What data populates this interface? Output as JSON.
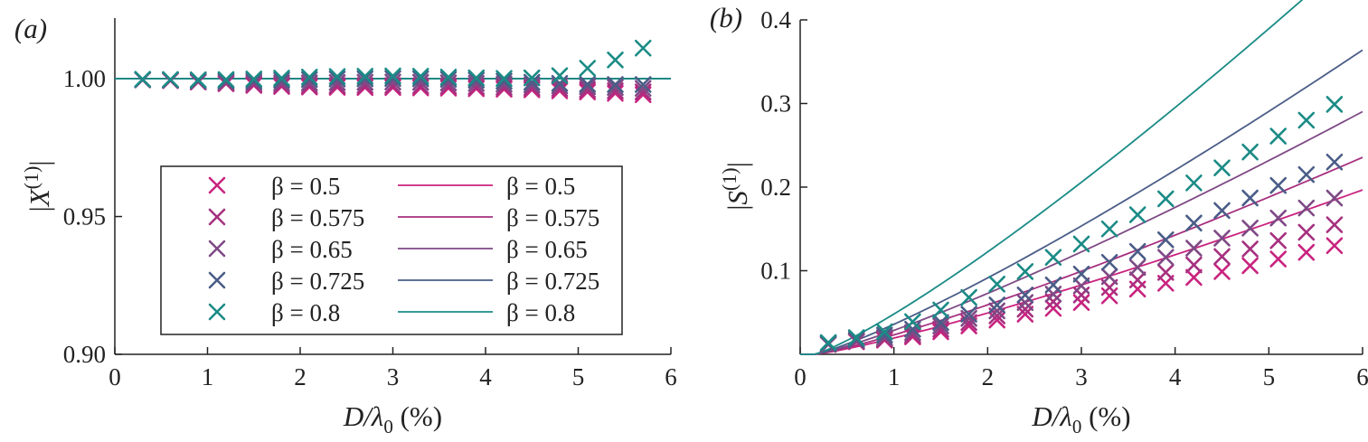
{
  "chart_data": [
    {
      "panel": "(a)",
      "type": "scatter",
      "xlabel": "D/λ0 (%)",
      "ylabel": "|X(1)|",
      "xlim": [
        0,
        6
      ],
      "ylim": [
        0.9,
        1.022
      ],
      "xticks": [
        0,
        1,
        2,
        3,
        4,
        5,
        6
      ],
      "yticks": [
        0.9,
        0.95,
        1.0
      ],
      "ytick_labels": [
        "0.90",
        "0.95",
        "1.00"
      ],
      "legend": {
        "placement": "lower-center",
        "markers": [
          "β = 0.5",
          "β = 0.575",
          "β = 0.65",
          "β = 0.725",
          "β = 0.8"
        ],
        "lines": [
          "β = 0.5",
          "β = 0.575",
          "β = 0.65",
          "β = 0.725",
          "β = 0.8"
        ]
      },
      "x": [
        0.3,
        0.6,
        0.9,
        1.2,
        1.5,
        1.8,
        2.1,
        2.4,
        2.7,
        3.0,
        3.3,
        3.6,
        3.9,
        4.2,
        4.5,
        4.8,
        5.1,
        5.4,
        5.7
      ],
      "series": [
        {
          "name": "β = 0.5",
          "color": "#c9237f",
          "values": [
            0.9996,
            0.9993,
            0.9988,
            0.9982,
            0.9976,
            0.9972,
            0.997,
            0.9969,
            0.9968,
            0.9968,
            0.9967,
            0.9966,
            0.9964,
            0.9962,
            0.996,
            0.9956,
            0.9952,
            0.9947,
            0.9942
          ],
          "line": [
            1.0,
            1.0
          ]
        },
        {
          "name": "β = 0.575",
          "color": "#a6307f",
          "values": [
            0.9996,
            0.9994,
            0.9989,
            0.9984,
            0.998,
            0.9977,
            0.9976,
            0.9975,
            0.9975,
            0.9975,
            0.9974,
            0.9973,
            0.9971,
            0.9969,
            0.9967,
            0.9964,
            0.996,
            0.9956,
            0.9952
          ],
          "line": [
            1.0,
            1.0
          ]
        },
        {
          "name": "β = 0.65",
          "color": "#7e4a85",
          "values": [
            0.9997,
            0.9995,
            0.9991,
            0.9988,
            0.9986,
            0.9985,
            0.9985,
            0.9986,
            0.9987,
            0.9988,
            0.9987,
            0.9985,
            0.9983,
            0.998,
            0.9977,
            0.9974,
            0.9971,
            0.9968,
            0.9965
          ],
          "line": [
            1.0,
            1.0
          ]
        },
        {
          "name": "β = 0.725",
          "color": "#4a5d87",
          "values": [
            0.9997,
            0.9996,
            0.9994,
            0.9993,
            0.9993,
            0.9995,
            0.9997,
            0.9999,
            1.0,
            1.0001,
            1.0,
            0.9998,
            0.9995,
            0.9991,
            0.9987,
            0.9983,
            0.998,
            0.9979,
            0.9979
          ],
          "line": [
            1.0,
            1.0
          ]
        },
        {
          "name": "β = 0.8",
          "color": "#1b8b86",
          "values": [
            0.9998,
            0.9997,
            0.9996,
            0.9997,
            0.9999,
            1.0002,
            1.0006,
            1.0008,
            1.0009,
            1.001,
            1.0009,
            1.0006,
            1.0003,
            1.0001,
            1.0003,
            1.0011,
            1.0038,
            1.0068,
            1.0111
          ],
          "line": [
            1.0,
            1.0
          ]
        }
      ]
    },
    {
      "panel": "(b)",
      "type": "scatter",
      "xlabel": "D/λ0 (%)",
      "ylabel": "|S(1)|",
      "xlim": [
        0,
        6
      ],
      "ylim": [
        0,
        0.4
      ],
      "xticks": [
        0,
        1,
        2,
        3,
        4,
        5,
        6
      ],
      "yticks": [
        0.1,
        0.2,
        0.3,
        0.4
      ],
      "ytick_labels": [
        "0.1",
        "0.2",
        "0.3",
        "0.4"
      ],
      "x": [
        0.3,
        0.6,
        0.9,
        1.2,
        1.5,
        1.8,
        2.1,
        2.4,
        2.7,
        3.0,
        3.3,
        3.6,
        3.9,
        4.2,
        4.5,
        4.8,
        5.1,
        5.4,
        5.7
      ],
      "series": [
        {
          "name": "β = 0.5",
          "color": "#c9237f",
          "values": [
            0.012,
            0.015,
            0.017,
            0.021,
            0.027,
            0.034,
            0.041,
            0.048,
            0.055,
            0.062,
            0.07,
            0.078,
            0.085,
            0.092,
            0.099,
            0.106,
            0.114,
            0.122,
            0.13
          ],
          "line_k": 0.02361
        },
        {
          "name": "β = 0.575",
          "color": "#a6307f",
          "values": [
            0.012,
            0.016,
            0.018,
            0.023,
            0.03,
            0.038,
            0.046,
            0.054,
            0.063,
            0.071,
            0.08,
            0.089,
            0.098,
            0.107,
            0.117,
            0.126,
            0.136,
            0.146,
            0.155
          ],
          "line_k": 0.02828
        },
        {
          "name": "β = 0.65",
          "color": "#7e4a85",
          "values": [
            0.012,
            0.016,
            0.02,
            0.026,
            0.034,
            0.043,
            0.052,
            0.062,
            0.072,
            0.082,
            0.093,
            0.104,
            0.116,
            0.127,
            0.139,
            0.151,
            0.163,
            0.175,
            0.187
          ],
          "line_k": 0.03485
        },
        {
          "name": "β = 0.725",
          "color": "#4a5d87",
          "values": [
            0.013,
            0.018,
            0.023,
            0.03,
            0.038,
            0.048,
            0.059,
            0.071,
            0.083,
            0.096,
            0.11,
            0.123,
            0.137,
            0.157,
            0.172,
            0.187,
            0.202,
            0.215,
            0.23
          ],
          "line_k": 0.04369
        },
        {
          "name": "β = 0.8",
          "color": "#1b8b86",
          "values": [
            0.014,
            0.02,
            0.027,
            0.039,
            0.053,
            0.068,
            0.084,
            0.099,
            0.116,
            0.132,
            0.15,
            0.167,
            0.186,
            0.205,
            0.223,
            0.242,
            0.261,
            0.28,
            0.299
          ],
          "line_k": 0.05856
        }
      ]
    }
  ]
}
